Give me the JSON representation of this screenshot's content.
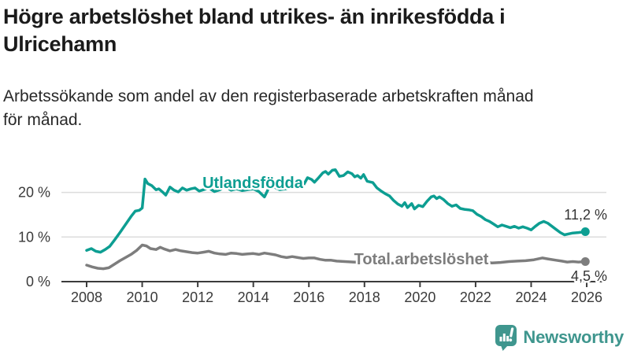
{
  "header": {
    "title_line1": "Högre arbetslöshet bland utrikes- än inrikesfödda i",
    "title_line2": "Ulricehamn",
    "subtitle_line1": "Arbetssökande som andel av den registerbaserade arbetskraften månad",
    "subtitle_line2": "för månad."
  },
  "footer": {
    "brand": "Newsworthy",
    "brand_color": "#3f968e",
    "brand_icon": "speech-bubble-bar-chart-icon"
  },
  "chart_data": {
    "type": "line",
    "title": "Högre arbetslöshet bland utrikes- än inrikesfödda i Ulricehamn",
    "subtitle": "Arbetssökande som andel av den registerbaserade arbetskraften månad för månad.",
    "xlabel": "",
    "ylabel": "",
    "grid": "horizontal",
    "legend": "inline-labels",
    "x_range": [
      2008,
      2026.7
    ],
    "y_range": [
      0,
      26
    ],
    "y_unit": "%",
    "x_axis": {
      "ticks": [
        {
          "value": 2008,
          "label": "2008"
        },
        {
          "value": 2010,
          "label": "2010"
        },
        {
          "value": 2012,
          "label": "2012"
        },
        {
          "value": 2014,
          "label": "2014"
        },
        {
          "value": 2016,
          "label": "2016"
        },
        {
          "value": 2018,
          "label": "2018"
        },
        {
          "value": 2020,
          "label": "2020"
        },
        {
          "value": 2022,
          "label": "2022"
        },
        {
          "value": 2024,
          "label": "2024"
        },
        {
          "value": 2026,
          "label": "2026"
        }
      ]
    },
    "y_axis": {
      "ticks": [
        {
          "value": 0,
          "label": "0 %"
        },
        {
          "value": 10,
          "label": "10 %"
        },
        {
          "value": 20,
          "label": "20 %"
        }
      ]
    },
    "series": [
      {
        "name": "Utlandsfödda",
        "color": "#0d9e92",
        "end_label": "11,2 %",
        "end_value": 11.2,
        "points": [
          [
            2008.0,
            7.0
          ],
          [
            2008.17,
            7.4
          ],
          [
            2008.33,
            6.8
          ],
          [
            2008.5,
            6.6
          ],
          [
            2008.67,
            7.2
          ],
          [
            2008.83,
            7.9
          ],
          [
            2009.0,
            9.3
          ],
          [
            2009.2,
            11.0
          ],
          [
            2009.4,
            12.8
          ],
          [
            2009.6,
            14.6
          ],
          [
            2009.75,
            15.8
          ],
          [
            2009.9,
            16.0
          ],
          [
            2010.0,
            16.5
          ],
          [
            2010.1,
            23.0
          ],
          [
            2010.2,
            22.0
          ],
          [
            2010.35,
            21.5
          ],
          [
            2010.5,
            20.6
          ],
          [
            2010.6,
            20.8
          ],
          [
            2010.75,
            20.0
          ],
          [
            2010.85,
            19.4
          ],
          [
            2011.0,
            21.2
          ],
          [
            2011.15,
            20.5
          ],
          [
            2011.3,
            20.1
          ],
          [
            2011.45,
            21.0
          ],
          [
            2011.6,
            20.5
          ],
          [
            2011.75,
            20.8
          ],
          [
            2011.9,
            21.0
          ],
          [
            2012.05,
            20.3
          ],
          [
            2012.2,
            20.6
          ],
          [
            2012.4,
            21.0
          ],
          [
            2012.6,
            20.2
          ],
          [
            2012.8,
            20.6
          ],
          [
            2013.0,
            21.3
          ],
          [
            2013.2,
            20.5
          ],
          [
            2013.4,
            20.8
          ],
          [
            2013.6,
            20.4
          ],
          [
            2013.8,
            20.6
          ],
          [
            2014.0,
            20.8
          ],
          [
            2014.2,
            20.2
          ],
          [
            2014.4,
            19.0
          ],
          [
            2014.55,
            20.9
          ],
          [
            2014.75,
            21.2
          ],
          [
            2014.95,
            20.6
          ],
          [
            2015.15,
            20.8
          ],
          [
            2015.35,
            21.0
          ],
          [
            2015.55,
            21.3
          ],
          [
            2015.75,
            21.0
          ],
          [
            2015.95,
            23.3
          ],
          [
            2016.1,
            22.9
          ],
          [
            2016.2,
            22.3
          ],
          [
            2016.35,
            23.3
          ],
          [
            2016.5,
            24.4
          ],
          [
            2016.6,
            24.7
          ],
          [
            2016.7,
            24.1
          ],
          [
            2016.85,
            25.0
          ],
          [
            2016.95,
            25.1
          ],
          [
            2017.1,
            23.6
          ],
          [
            2017.25,
            23.8
          ],
          [
            2017.4,
            24.6
          ],
          [
            2017.55,
            24.2
          ],
          [
            2017.65,
            23.5
          ],
          [
            2017.75,
            23.8
          ],
          [
            2017.87,
            23.2
          ],
          [
            2017.97,
            24.0
          ],
          [
            2018.1,
            22.5
          ],
          [
            2018.3,
            22.2
          ],
          [
            2018.45,
            21.0
          ],
          [
            2018.6,
            20.3
          ],
          [
            2018.75,
            19.7
          ],
          [
            2018.9,
            19.2
          ],
          [
            2019.05,
            18.2
          ],
          [
            2019.2,
            17.4
          ],
          [
            2019.35,
            16.9
          ],
          [
            2019.45,
            17.7
          ],
          [
            2019.55,
            16.6
          ],
          [
            2019.7,
            17.5
          ],
          [
            2019.8,
            16.3
          ],
          [
            2019.95,
            17.1
          ],
          [
            2020.1,
            16.8
          ],
          [
            2020.25,
            18.0
          ],
          [
            2020.4,
            19.0
          ],
          [
            2020.5,
            19.2
          ],
          [
            2020.6,
            18.6
          ],
          [
            2020.7,
            19.0
          ],
          [
            2020.85,
            18.4
          ],
          [
            2021.0,
            17.5
          ],
          [
            2021.15,
            16.9
          ],
          [
            2021.3,
            17.2
          ],
          [
            2021.45,
            16.4
          ],
          [
            2021.6,
            16.2
          ],
          [
            2021.75,
            16.1
          ],
          [
            2021.9,
            15.9
          ],
          [
            2022.05,
            15.1
          ],
          [
            2022.2,
            14.6
          ],
          [
            2022.35,
            13.9
          ],
          [
            2022.5,
            13.5
          ],
          [
            2022.65,
            12.9
          ],
          [
            2022.8,
            12.3
          ],
          [
            2022.95,
            12.7
          ],
          [
            2023.1,
            12.4
          ],
          [
            2023.25,
            12.1
          ],
          [
            2023.4,
            12.4
          ],
          [
            2023.55,
            12.0
          ],
          [
            2023.7,
            12.3
          ],
          [
            2023.85,
            12.0
          ],
          [
            2024.0,
            11.6
          ],
          [
            2024.15,
            12.4
          ],
          [
            2024.3,
            13.1
          ],
          [
            2024.45,
            13.5
          ],
          [
            2024.6,
            13.1
          ],
          [
            2024.75,
            12.4
          ],
          [
            2024.9,
            11.7
          ],
          [
            2025.05,
            11.0
          ],
          [
            2025.2,
            10.5
          ],
          [
            2025.35,
            10.7
          ],
          [
            2025.5,
            10.9
          ],
          [
            2025.7,
            11.0
          ],
          [
            2025.95,
            11.2
          ]
        ]
      },
      {
        "name": "Total arbetslöshet",
        "color": "#7d7d7d",
        "end_label": "4,5 %",
        "end_value": 4.5,
        "points": [
          [
            2008.0,
            3.7
          ],
          [
            2008.2,
            3.3
          ],
          [
            2008.4,
            3.0
          ],
          [
            2008.6,
            2.9
          ],
          [
            2008.8,
            3.1
          ],
          [
            2009.0,
            3.9
          ],
          [
            2009.2,
            4.7
          ],
          [
            2009.4,
            5.4
          ],
          [
            2009.6,
            6.1
          ],
          [
            2009.8,
            7.0
          ],
          [
            2010.0,
            8.2
          ],
          [
            2010.15,
            8.0
          ],
          [
            2010.3,
            7.4
          ],
          [
            2010.5,
            7.2
          ],
          [
            2010.65,
            7.7
          ],
          [
            2010.8,
            7.3
          ],
          [
            2011.0,
            6.9
          ],
          [
            2011.2,
            7.2
          ],
          [
            2011.4,
            6.9
          ],
          [
            2011.6,
            6.7
          ],
          [
            2011.8,
            6.5
          ],
          [
            2012.0,
            6.4
          ],
          [
            2012.2,
            6.6
          ],
          [
            2012.4,
            6.8
          ],
          [
            2012.6,
            6.4
          ],
          [
            2012.8,
            6.2
          ],
          [
            2013.0,
            6.1
          ],
          [
            2013.2,
            6.4
          ],
          [
            2013.4,
            6.3
          ],
          [
            2013.6,
            6.1
          ],
          [
            2013.8,
            6.2
          ],
          [
            2014.0,
            6.3
          ],
          [
            2014.2,
            6.1
          ],
          [
            2014.4,
            6.4
          ],
          [
            2014.6,
            6.2
          ],
          [
            2014.8,
            6.0
          ],
          [
            2015.0,
            5.6
          ],
          [
            2015.2,
            5.4
          ],
          [
            2015.4,
            5.6
          ],
          [
            2015.6,
            5.4
          ],
          [
            2015.8,
            5.2
          ],
          [
            2016.0,
            5.3
          ],
          [
            2016.2,
            5.3
          ],
          [
            2016.4,
            5.0
          ],
          [
            2016.6,
            4.8
          ],
          [
            2016.8,
            4.8
          ],
          [
            2017.0,
            4.6
          ],
          [
            2017.3,
            4.5
          ],
          [
            2017.6,
            4.4
          ],
          [
            2018.0,
            4.3
          ],
          [
            2018.4,
            4.2
          ],
          [
            2018.8,
            4.1
          ],
          [
            2019.2,
            4.2
          ],
          [
            2019.6,
            4.3
          ],
          [
            2020.0,
            4.5
          ],
          [
            2020.3,
            5.5
          ],
          [
            2020.6,
            5.8
          ],
          [
            2021.0,
            5.5
          ],
          [
            2021.4,
            5.1
          ],
          [
            2021.8,
            4.7
          ],
          [
            2022.2,
            4.4
          ],
          [
            2022.6,
            4.2
          ],
          [
            2022.9,
            4.3
          ],
          [
            2023.2,
            4.5
          ],
          [
            2023.5,
            4.6
          ],
          [
            2023.8,
            4.7
          ],
          [
            2024.1,
            4.9
          ],
          [
            2024.4,
            5.3
          ],
          [
            2024.6,
            5.1
          ],
          [
            2024.9,
            4.8
          ],
          [
            2025.1,
            4.6
          ],
          [
            2025.3,
            4.4
          ],
          [
            2025.5,
            4.5
          ],
          [
            2025.7,
            4.4
          ],
          [
            2025.95,
            4.5
          ]
        ]
      }
    ]
  }
}
